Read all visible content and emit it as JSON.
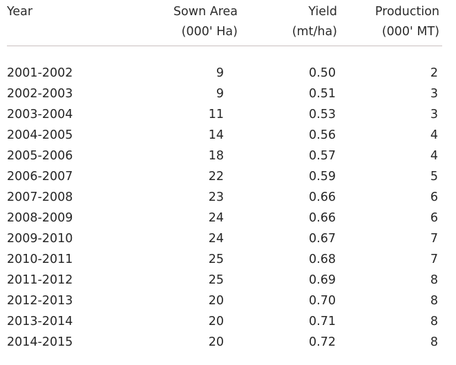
{
  "table": {
    "headers": {
      "year": "Year",
      "sown_area": [
        "Sown Area",
        "(000' Ha)"
      ],
      "yield": [
        "Yield",
        "(mt/ha)"
      ],
      "production": [
        "Production",
        "(000' MT)"
      ]
    },
    "rows": [
      {
        "year": "2001-2002",
        "sown_area": "9",
        "yield": "0.50",
        "production": "2"
      },
      {
        "year": "2002-2003",
        "sown_area": "9",
        "yield": "0.51",
        "production": "3"
      },
      {
        "year": "2003-2004",
        "sown_area": "11",
        "yield": "0.53",
        "production": "3"
      },
      {
        "year": "2004-2005",
        "sown_area": "14",
        "yield": "0.56",
        "production": "4"
      },
      {
        "year": "2005-2006",
        "sown_area": "18",
        "yield": "0.57",
        "production": "4"
      },
      {
        "year": "2006-2007",
        "sown_area": "22",
        "yield": "0.59",
        "production": "5"
      },
      {
        "year": "2007-2008",
        "sown_area": "23",
        "yield": "0.66",
        "production": "6"
      },
      {
        "year": "2008-2009",
        "sown_area": "24",
        "yield": "0.66",
        "production": "6"
      },
      {
        "year": "2009-2010",
        "sown_area": "24",
        "yield": "0.67",
        "production": "7"
      },
      {
        "year": "2010-2011",
        "sown_area": "25",
        "yield": "0.68",
        "production": "7"
      },
      {
        "year": "2011-2012",
        "sown_area": "25",
        "yield": "0.69",
        "production": "8"
      },
      {
        "year": "2012-2013",
        "sown_area": "20",
        "yield": "0.70",
        "production": "8"
      },
      {
        "year": "2013-2014",
        "sown_area": "20",
        "yield": "0.71",
        "production": "8"
      },
      {
        "year": "2014-2015",
        "sown_area": "20",
        "yield": "0.72",
        "production": "8"
      }
    ]
  }
}
